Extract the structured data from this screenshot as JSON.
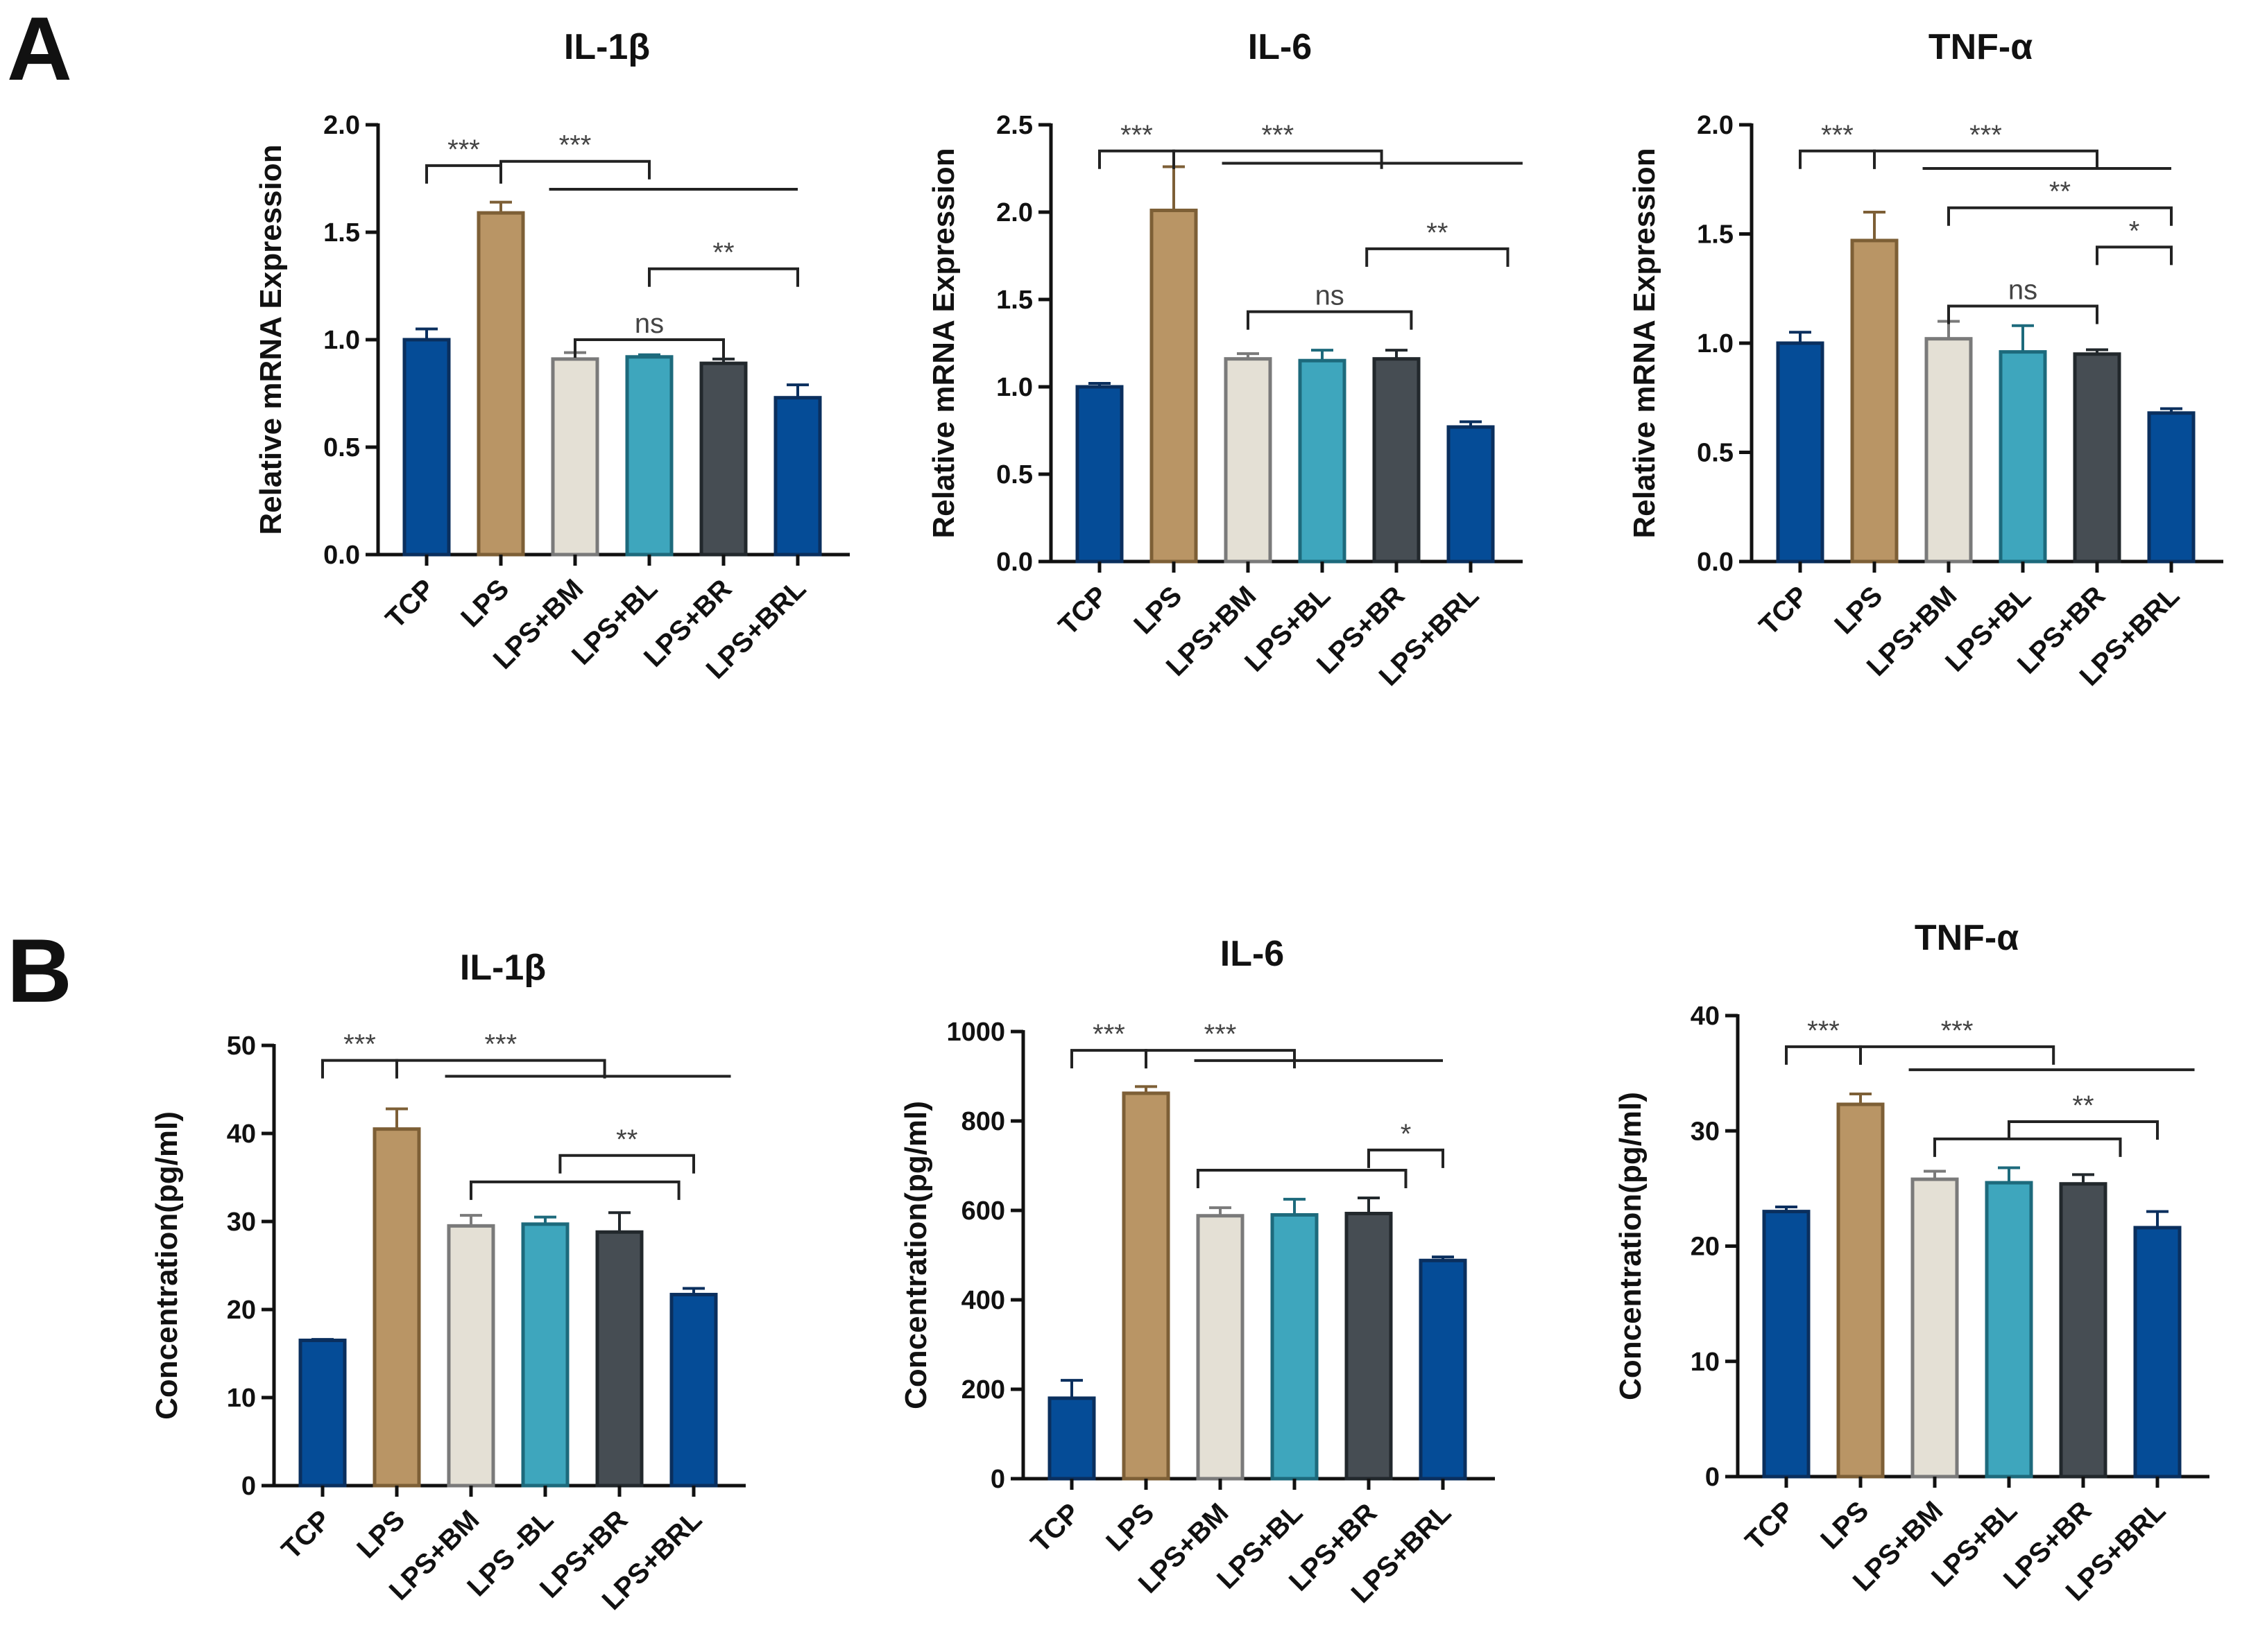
{
  "panels": [
    {
      "letter": "A"
    },
    {
      "letter": "B"
    }
  ],
  "colors": {
    "TCP": "#054c97",
    "LPS": "#b99565",
    "LPS+BM": "#e4e0d5",
    "LPS+BL": "#3ea6bd",
    "LPS+BR": "#464d53",
    "LPS+BRL": "#054c97"
  },
  "chart_data": [
    {
      "type": "bar",
      "panel": "A",
      "title": "IL-1β",
      "xlabel": "",
      "ylabel": "Relative mRNA Expression",
      "ylim": [
        0,
        2.0
      ],
      "yticks": [
        "0.0",
        "0.5",
        "1.0",
        "1.5",
        "2.0"
      ],
      "ytick_values": [
        0,
        0.5,
        1.0,
        1.5,
        2.0
      ],
      "categories": [
        "TCP",
        "LPS",
        "LPS+BM",
        "LPS+BL",
        "LPS+BR",
        "LPS+BRL"
      ],
      "values": [
        1.0,
        1.59,
        0.91,
        0.92,
        0.89,
        0.73
      ],
      "errors": [
        0.05,
        0.05,
        0.03,
        0.01,
        0.02,
        0.06
      ],
      "significance": [
        {
          "label": "***",
          "from": 0,
          "to": 1,
          "level": 1.81
        },
        {
          "label": "***",
          "from": 1,
          "to": 3,
          "level": 1.83,
          "line_to": 5,
          "line_level": 1.7
        },
        {
          "label": "ns",
          "from": 2,
          "to": 4,
          "level": 1.0
        },
        {
          "label": "**",
          "from": 3,
          "to": 5,
          "level": 1.33
        }
      ]
    },
    {
      "type": "bar",
      "panel": "A",
      "title": "IL-6",
      "xlabel": "",
      "ylabel": "Relative mRNA Expression",
      "ylim": [
        0,
        2.5
      ],
      "yticks": [
        "0.0",
        "0.5",
        "1.0",
        "1.5",
        "2.0",
        "2.5"
      ],
      "ytick_values": [
        0,
        0.5,
        1.0,
        1.5,
        2.0,
        2.5
      ],
      "categories": [
        "TCP",
        "LPS",
        "LPS+BM",
        "LPS+BL",
        "LPS+BR",
        "LPS+BRL"
      ],
      "values": [
        1.0,
        2.01,
        1.16,
        1.15,
        1.16,
        0.77
      ],
      "errors": [
        0.02,
        0.25,
        0.03,
        0.06,
        0.05,
        0.03
      ],
      "significance": [
        {
          "label": "***",
          "from": 0,
          "to": 1,
          "level": 2.35
        },
        {
          "label": "***",
          "from": 1,
          "to": 3.8,
          "level": 2.35,
          "line_to": 5.7,
          "line_level": 2.28
        },
        {
          "label": "ns",
          "from": 2,
          "to": 4.2,
          "level": 1.43
        },
        {
          "label": "**",
          "from": 3.6,
          "to": 5.5,
          "level": 1.79
        }
      ]
    },
    {
      "type": "bar",
      "panel": "A",
      "title": "TNF-α",
      "xlabel": "",
      "ylabel": "Relative mRNA Expression",
      "ylim": [
        0,
        2.0
      ],
      "yticks": [
        "0.0",
        "0.5",
        "1.0",
        "1.5",
        "2.0"
      ],
      "ytick_values": [
        0,
        0.5,
        1.0,
        1.5,
        2.0
      ],
      "categories": [
        "TCP",
        "LPS",
        "LPS+BM",
        "LPS+BL",
        "LPS+BR",
        "LPS+BRL"
      ],
      "values": [
        1.0,
        1.47,
        1.02,
        0.96,
        0.95,
        0.68
      ],
      "errors": [
        0.05,
        0.13,
        0.08,
        0.12,
        0.02,
        0.02
      ],
      "significance": [
        {
          "label": "***",
          "from": 0,
          "to": 1,
          "level": 1.88
        },
        {
          "label": "***",
          "from": 1,
          "to": 4,
          "level": 1.88,
          "line_to": 5,
          "line_level": 1.8
        },
        {
          "label": "**",
          "from": 2,
          "to": 5,
          "level": 1.62
        },
        {
          "label": "*",
          "from": 4,
          "to": 5,
          "level": 1.44
        },
        {
          "label": "ns",
          "from": 2,
          "to": 4,
          "level": 1.17
        }
      ]
    },
    {
      "type": "bar",
      "panel": "B",
      "title": "IL-1β",
      "xlabel": "",
      "ylabel": "Concentration(pg/ml)",
      "ylim": [
        0,
        50
      ],
      "yticks": [
        "0",
        "10",
        "20",
        "30",
        "40",
        "50"
      ],
      "ytick_values": [
        0,
        10,
        20,
        30,
        40,
        50
      ],
      "categories": [
        "TCP",
        "LPS",
        "LPS+BM",
        "LPS -BL",
        "LPS+BR",
        "LPS+BRL"
      ],
      "values": [
        16.5,
        40.5,
        29.5,
        29.7,
        28.8,
        21.7
      ],
      "errors": [
        0.1,
        2.3,
        1.2,
        0.8,
        2.2,
        0.7
      ],
      "significance": [
        {
          "label": "***",
          "from": 0,
          "to": 1,
          "level": 48.3
        },
        {
          "label": "***",
          "from": 1,
          "to": 3.8,
          "level": 48.3,
          "line_to": 5.5,
          "line_level": 46.5
        },
        {
          "label": "",
          "from": 2,
          "to": 4.8,
          "level": 34.5
        },
        {
          "label": "**",
          "from": 3.2,
          "to": 5,
          "level": 37.5
        }
      ]
    },
    {
      "type": "bar",
      "panel": "B",
      "title": "IL-6",
      "xlabel": "",
      "ylabel": "Concentration(pg/ml)",
      "ylim": [
        0,
        1000
      ],
      "yticks": [
        "0",
        "200",
        "400",
        "600",
        "800",
        "1000"
      ],
      "ytick_values": [
        0,
        200,
        400,
        600,
        800,
        1000
      ],
      "categories": [
        "TCP",
        "LPS",
        "LPS+BM",
        "LPS+BL",
        "LPS+BR",
        "LPS+BRL"
      ],
      "values": [
        180,
        862,
        588,
        590,
        593,
        488
      ],
      "errors": [
        40,
        15,
        18,
        35,
        35,
        8
      ],
      "significance": [
        {
          "label": "***",
          "from": 0,
          "to": 1,
          "level": 958
        },
        {
          "label": "***",
          "from": 1,
          "to": 3,
          "level": 958,
          "line_to": 5,
          "line_level": 935
        },
        {
          "label": "",
          "from": 1.7,
          "to": 4.5,
          "level": 690
        },
        {
          "label": "*",
          "from": 4,
          "to": 5,
          "level": 735
        }
      ]
    },
    {
      "type": "bar",
      "panel": "B",
      "title": "TNF-α",
      "xlabel": "",
      "ylabel": "Concentration(pg/ml)",
      "ylim": [
        0,
        40
      ],
      "yticks": [
        "0",
        "10",
        "20",
        "30",
        "40"
      ],
      "ytick_values": [
        0,
        10,
        20,
        30,
        40
      ],
      "categories": [
        "TCP",
        "LPS",
        "LPS+BM",
        "LPS+BL",
        "LPS+BR",
        "LPS+BRL"
      ],
      "values": [
        23.0,
        32.3,
        25.8,
        25.5,
        25.4,
        21.6
      ],
      "errors": [
        0.4,
        0.9,
        0.7,
        1.3,
        0.8,
        1.4
      ],
      "significance": [
        {
          "label": "***",
          "from": 0,
          "to": 1,
          "level": 37.3
        },
        {
          "label": "***",
          "from": 1,
          "to": 3.6,
          "level": 37.3,
          "line_to": 5.5,
          "line_level": 35.3
        },
        {
          "label": "",
          "from": 2,
          "to": 4.5,
          "level": 29.3
        },
        {
          "label": "**",
          "from": 3,
          "to": 5,
          "level": 30.8
        }
      ]
    }
  ]
}
